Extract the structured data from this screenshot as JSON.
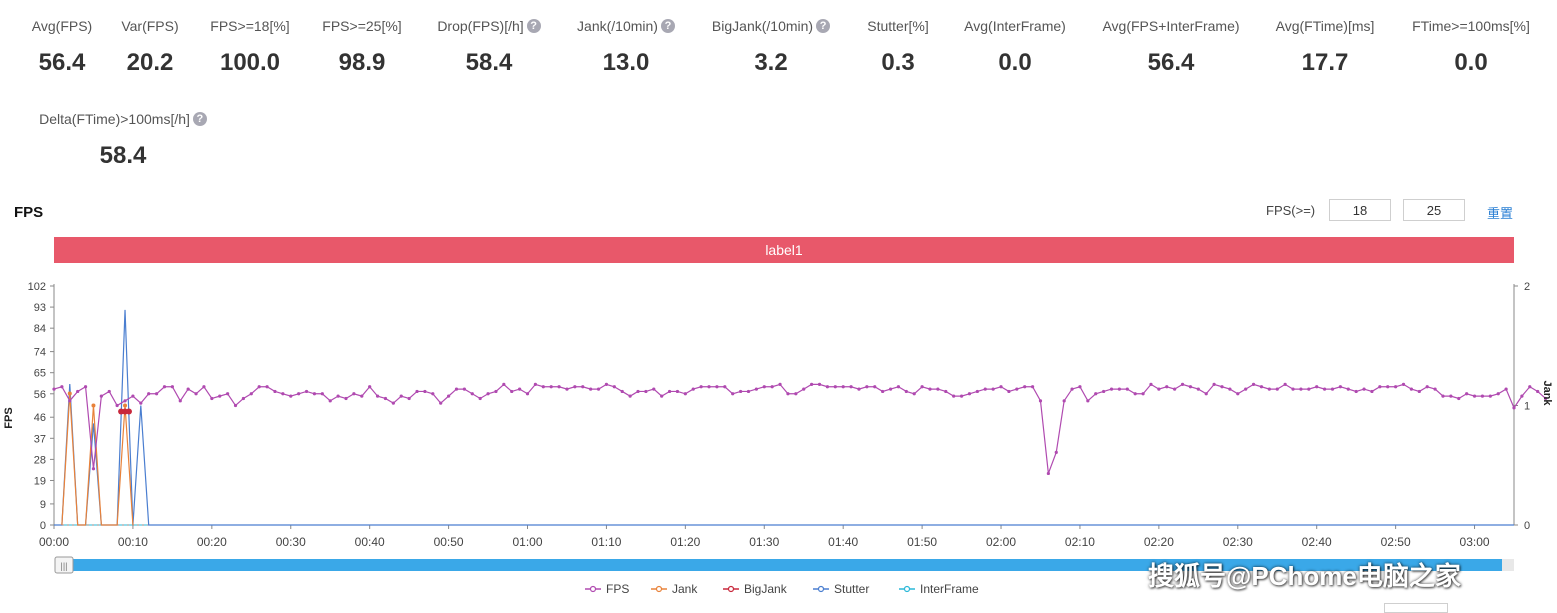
{
  "metrics_row1": [
    {
      "label": "Avg(FPS)",
      "value": "56.4",
      "help": false
    },
    {
      "label": "Var(FPS)",
      "value": "20.2",
      "help": false
    },
    {
      "label": "FPS>=18[%]",
      "value": "100.0",
      "help": false
    },
    {
      "label": "FPS>=25[%]",
      "value": "98.9",
      "help": false
    },
    {
      "label": "Drop(FPS)[/h]",
      "value": "58.4",
      "help": true
    },
    {
      "label": "Jank(/10min)",
      "value": "13.0",
      "help": true
    },
    {
      "label": "BigJank(/10min)",
      "value": "3.2",
      "help": true
    },
    {
      "label": "Stutter[%]",
      "value": "0.3",
      "help": false
    },
    {
      "label": "Avg(InterFrame)",
      "value": "0.0",
      "help": false
    },
    {
      "label": "Avg(FPS+InterFrame)",
      "value": "56.4",
      "help": false
    },
    {
      "label": "Avg(FTime)[ms]",
      "value": "17.7",
      "help": false
    },
    {
      "label": "FTime>=100ms[%]",
      "value": "0.0",
      "help": false
    }
  ],
  "metrics_row2": [
    {
      "label": "Delta(FTime)>100ms[/h]",
      "value": "58.4",
      "help": true
    }
  ],
  "help_glyph": "?",
  "section_title": "FPS",
  "threshold": {
    "label": "FPS(>=)",
    "low": "18",
    "high": "25",
    "reset_label": "重置"
  },
  "label_bar": {
    "text": "label1",
    "color": "#e8586a"
  },
  "watermark": "搜狐号@PChome电脑之家",
  "chart_data": {
    "type": "line",
    "title": "FPS",
    "ylabel": "FPS",
    "y2label": "Jank",
    "ylim": [
      0,
      102
    ],
    "y2lim": [
      0,
      2
    ],
    "yticks": [
      "0",
      "9",
      "19",
      "28",
      "37",
      "46",
      "56",
      "65",
      "74",
      "84",
      "93",
      "102"
    ],
    "y2ticks": [
      "0",
      "1",
      "2"
    ],
    "x_range_sec": [
      0,
      185
    ],
    "xticks": [
      "00:00",
      "00:10",
      "00:20",
      "00:30",
      "00:40",
      "00:50",
      "01:00",
      "01:10",
      "01:20",
      "01:30",
      "01:40",
      "01:50",
      "02:00",
      "02:10",
      "02:20",
      "02:30",
      "02:40",
      "02:50",
      "03:00"
    ],
    "legend": [
      {
        "name": "FPS",
        "color": "#b04ab0"
      },
      {
        "name": "Jank",
        "color": "#e8823a"
      },
      {
        "name": "BigJank",
        "color": "#c8283c"
      },
      {
        "name": "Stutter",
        "color": "#4a7ed0"
      },
      {
        "name": "InterFrame",
        "color": "#2ab8d8"
      }
    ],
    "series": [
      {
        "name": "FPS",
        "x_step_sec": 1,
        "values": [
          58,
          59,
          53,
          57,
          59,
          24,
          55,
          57,
          51,
          53,
          55,
          52,
          56,
          56,
          59,
          59,
          53,
          58,
          56,
          59,
          54,
          55,
          56,
          51,
          54,
          56,
          59,
          59,
          57,
          56,
          55,
          56,
          57,
          56,
          56,
          53,
          55,
          54,
          56,
          55,
          59,
          55,
          54,
          52,
          55,
          54,
          57,
          57,
          56,
          52,
          55,
          58,
          58,
          56,
          54,
          56,
          57,
          60,
          57,
          58,
          56,
          60,
          59,
          59,
          59,
          58,
          59,
          59,
          58,
          58,
          60,
          59,
          57,
          55,
          57,
          57,
          58,
          55,
          57,
          57,
          56,
          58,
          59,
          59,
          59,
          59,
          56,
          57,
          57,
          58,
          59,
          59,
          60,
          56,
          56,
          58,
          60,
          60,
          59,
          59,
          59,
          59,
          58,
          59,
          59,
          57,
          58,
          59,
          57,
          56,
          59,
          58,
          58,
          57,
          55,
          55,
          56,
          57,
          58,
          58,
          59,
          57,
          58,
          59,
          59,
          53,
          22,
          31,
          53,
          58,
          59,
          53,
          56,
          57,
          58,
          58,
          58,
          56,
          56,
          60,
          58,
          59,
          58,
          60,
          59,
          58,
          56,
          60,
          59,
          58,
          56,
          58,
          60,
          59,
          58,
          58,
          60,
          58,
          58,
          58,
          59,
          58,
          58,
          59,
          58,
          57,
          58,
          57,
          59,
          59,
          59,
          60,
          58,
          57,
          59,
          58,
          55,
          55,
          54,
          56,
          55,
          55,
          55,
          56,
          58,
          50,
          55,
          59,
          57,
          54
        ]
      },
      {
        "name": "Jank",
        "points": [
          [
            1,
            0
          ],
          [
            2,
            1.1
          ],
          [
            3,
            0
          ],
          [
            4,
            0
          ],
          [
            5,
            1.0
          ],
          [
            6,
            0
          ],
          [
            7,
            0
          ],
          [
            8,
            0
          ],
          [
            9,
            1.0
          ],
          [
            10,
            0
          ]
        ]
      },
      {
        "name": "BigJank",
        "points": [
          [
            8.5,
            0.95
          ],
          [
            9,
            0.95
          ],
          [
            9.5,
            0.95
          ]
        ]
      },
      {
        "name": "Stutter",
        "points": [
          [
            0,
            0
          ],
          [
            1,
            0
          ],
          [
            2,
            1.18
          ],
          [
            3,
            0
          ],
          [
            4,
            0
          ],
          [
            5,
            0.85
          ],
          [
            6,
            0
          ],
          [
            7,
            0
          ],
          [
            8,
            0
          ],
          [
            9,
            1.8
          ],
          [
            10,
            0
          ],
          [
            11,
            1.0
          ],
          [
            12,
            0
          ],
          [
            185,
            0
          ]
        ]
      },
      {
        "name": "InterFrame",
        "values": [
          0
        ]
      }
    ]
  }
}
